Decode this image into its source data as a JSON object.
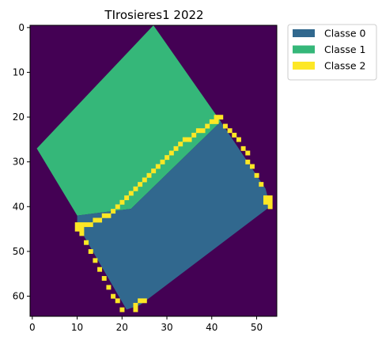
{
  "chart_data": {
    "type": "heatmap",
    "title": "TIrosieres1 2022",
    "xlabel": "",
    "ylabel": "",
    "x_range": [
      -0.5,
      54.5
    ],
    "y_range": [
      64.5,
      -0.5
    ],
    "x_ticks": [
      0,
      10,
      20,
      30,
      40,
      50
    ],
    "y_ticks": [
      0,
      10,
      20,
      30,
      40,
      50,
      60
    ],
    "grid": false,
    "legend_position": "outside-top-right",
    "background_color": "#440154",
    "classes": [
      {
        "name": "Classe 0",
        "color": "#31688e"
      },
      {
        "name": "Classe 1",
        "color": "#35b779"
      },
      {
        "name": "Classe 2",
        "color": "#fde725"
      }
    ],
    "regions": [
      {
        "class": "Classe 1",
        "polygon": [
          [
            27,
            -0.5
          ],
          [
            42,
            21
          ],
          [
            22,
            40.5
          ],
          [
            10,
            42
          ],
          [
            1,
            27
          ]
        ]
      },
      {
        "class": "Classe 0",
        "polygon": [
          [
            42,
            21
          ],
          [
            52,
            36
          ],
          [
            53,
            40
          ],
          [
            24,
            62
          ],
          [
            21,
            63
          ],
          [
            10,
            44
          ],
          [
            10,
            42
          ],
          [
            22,
            40.5
          ]
        ]
      }
    ],
    "boundary": {
      "class": "Classe 2",
      "cells": [
        [
          41,
          20
        ],
        [
          42,
          20
        ],
        [
          40,
          21
        ],
        [
          41,
          21
        ],
        [
          39,
          22
        ],
        [
          38,
          23
        ],
        [
          37,
          23
        ],
        [
          36,
          24
        ],
        [
          35,
          25
        ],
        [
          34,
          25
        ],
        [
          33,
          26
        ],
        [
          32,
          27
        ],
        [
          31,
          28
        ],
        [
          30,
          29
        ],
        [
          29,
          30
        ],
        [
          28,
          31
        ],
        [
          27,
          32
        ],
        [
          26,
          33
        ],
        [
          25,
          34
        ],
        [
          24,
          35
        ],
        [
          23,
          36
        ],
        [
          22,
          37
        ],
        [
          21,
          38
        ],
        [
          20,
          39
        ],
        [
          19,
          40
        ],
        [
          18,
          41
        ],
        [
          17,
          42
        ],
        [
          16,
          42
        ],
        [
          15,
          43
        ],
        [
          14,
          43
        ],
        [
          13,
          44
        ],
        [
          12,
          44
        ],
        [
          11,
          44
        ],
        [
          10,
          44
        ],
        [
          11,
          45
        ],
        [
          10,
          45
        ],
        [
          43,
          22
        ],
        [
          44,
          23
        ],
        [
          45,
          24
        ],
        [
          46,
          25
        ],
        [
          47,
          27
        ],
        [
          48,
          28
        ],
        [
          48,
          30
        ],
        [
          49,
          31
        ],
        [
          50,
          33
        ],
        [
          51,
          35
        ],
        [
          52,
          38
        ],
        [
          53,
          38
        ],
        [
          52,
          39
        ],
        [
          53,
          39
        ],
        [
          53,
          40
        ],
        [
          11,
          46
        ],
        [
          12,
          48
        ],
        [
          13,
          50
        ],
        [
          14,
          52
        ],
        [
          15,
          54
        ],
        [
          16,
          56
        ],
        [
          17,
          58
        ],
        [
          18,
          60
        ],
        [
          19,
          61
        ],
        [
          20,
          63
        ],
        [
          23,
          62
        ],
        [
          24,
          61
        ],
        [
          25,
          61
        ],
        [
          23,
          63
        ]
      ]
    }
  }
}
